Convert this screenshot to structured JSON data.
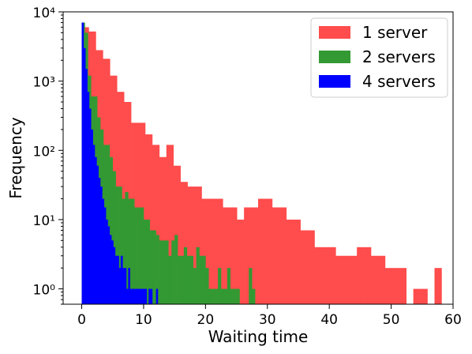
{
  "chart_data": {
    "type": "bar",
    "subtype": "histogram",
    "title": "",
    "xlabel": "Waiting time",
    "ylabel": "Frequency",
    "xlim": [
      -3,
      60
    ],
    "ylim": [
      0.6,
      10000
    ],
    "yscale": "log",
    "xticks": [
      0,
      10,
      20,
      30,
      40,
      50,
      60
    ],
    "xtick_labels": [
      "0",
      "10",
      "20",
      "30",
      "40",
      "50",
      "60"
    ],
    "yticks": [
      1,
      10,
      100,
      1000,
      10000
    ],
    "ytick_labels": [
      "10⁰",
      "10¹",
      "10²",
      "10³",
      "10⁴"
    ],
    "grid": false,
    "legend_position": "top-right",
    "series": [
      {
        "name": "1 server",
        "color": "#ff4c4c",
        "bin_start": 0,
        "bin_width": 1.14,
        "values": [
          6000,
          5200,
          2800,
          2100,
          1200,
          700,
          500,
          250,
          250,
          170,
          120,
          80,
          120,
          60,
          35,
          30,
          30,
          20,
          20,
          20,
          15,
          15,
          10,
          15,
          15,
          20,
          20,
          15,
          15,
          10,
          10,
          7,
          7,
          4,
          4,
          4,
          3,
          3,
          3,
          4,
          4,
          3,
          3,
          2,
          2,
          2,
          0,
          1,
          1,
          0,
          2,
          0
        ]
      },
      {
        "name": "2 servers",
        "color": "#339933",
        "bin_start": 0,
        "bin_width": 0.5,
        "values": [
          7000,
          5000,
          1200,
          600,
          600,
          300,
          200,
          120,
          120,
          80,
          50,
          30,
          30,
          20,
          25,
          20,
          20,
          15,
          15,
          15,
          10,
          10,
          7,
          7,
          6,
          5,
          5,
          5,
          3,
          5,
          6,
          3,
          3,
          4,
          3,
          3,
          2,
          4,
          3,
          3,
          2,
          1,
          1,
          1,
          2,
          1,
          1,
          2,
          1,
          1,
          1,
          0,
          0,
          0,
          2,
          1,
          0,
          0
        ]
      },
      {
        "name": "4 servers",
        "color": "#0000ff",
        "bin_start": 0,
        "bin_width": 0.3,
        "values": [
          7000,
          3000,
          1500,
          700,
          400,
          200,
          120,
          80,
          60,
          40,
          30,
          20,
          15,
          10,
          8,
          6,
          5,
          4,
          3,
          3,
          2,
          3,
          2,
          2,
          1,
          2,
          1,
          1,
          1,
          1,
          1,
          1,
          1,
          1,
          1,
          0,
          1,
          1,
          0,
          0,
          1
        ]
      }
    ]
  }
}
